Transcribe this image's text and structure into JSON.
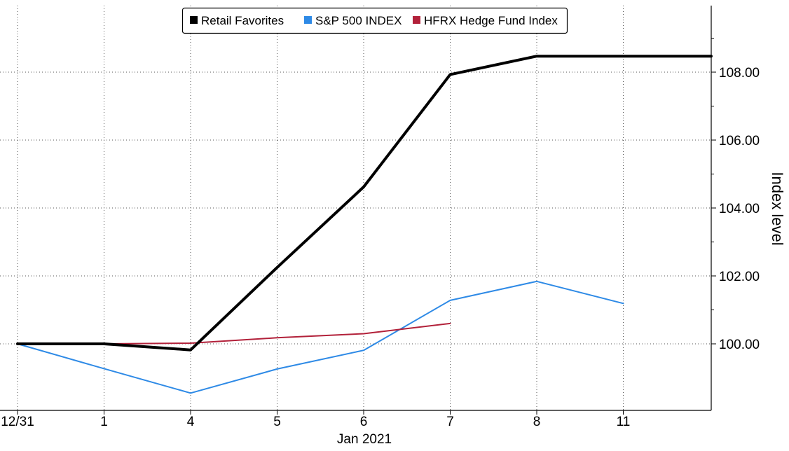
{
  "chart_data": {
    "type": "line",
    "title": "",
    "xlabel": "Jan 2021",
    "ylabel": "Index level",
    "categories": [
      "12/31",
      "1",
      "4",
      "5",
      "6",
      "7",
      "8",
      "11"
    ],
    "ylim": [
      98.2,
      110
    ],
    "yticks": [
      100,
      102,
      104,
      106,
      108
    ],
    "ytick_labels": [
      "100.00",
      "102.00",
      "104.00",
      "106.00",
      "108.00"
    ],
    "grid": true,
    "y_axis_side": "right",
    "legend_position": "top-center",
    "series": [
      {
        "name": "Retail Favorites",
        "color": "#000000",
        "values": [
          100.0,
          100.0,
          99.82,
          102.25,
          104.62,
          107.93,
          108.47,
          108.47
        ],
        "tail_to_end": true
      },
      {
        "name": "S&P 500 INDEX",
        "color": "#2e8ae6",
        "values": [
          100.0,
          99.27,
          98.55,
          99.26,
          99.81,
          101.28,
          101.84,
          101.19
        ]
      },
      {
        "name": "HFRX Hedge Fund Index",
        "color": "#b2213a",
        "values": [
          100.0,
          100.0,
          100.02,
          100.18,
          100.3,
          100.6,
          null,
          null
        ]
      }
    ]
  }
}
